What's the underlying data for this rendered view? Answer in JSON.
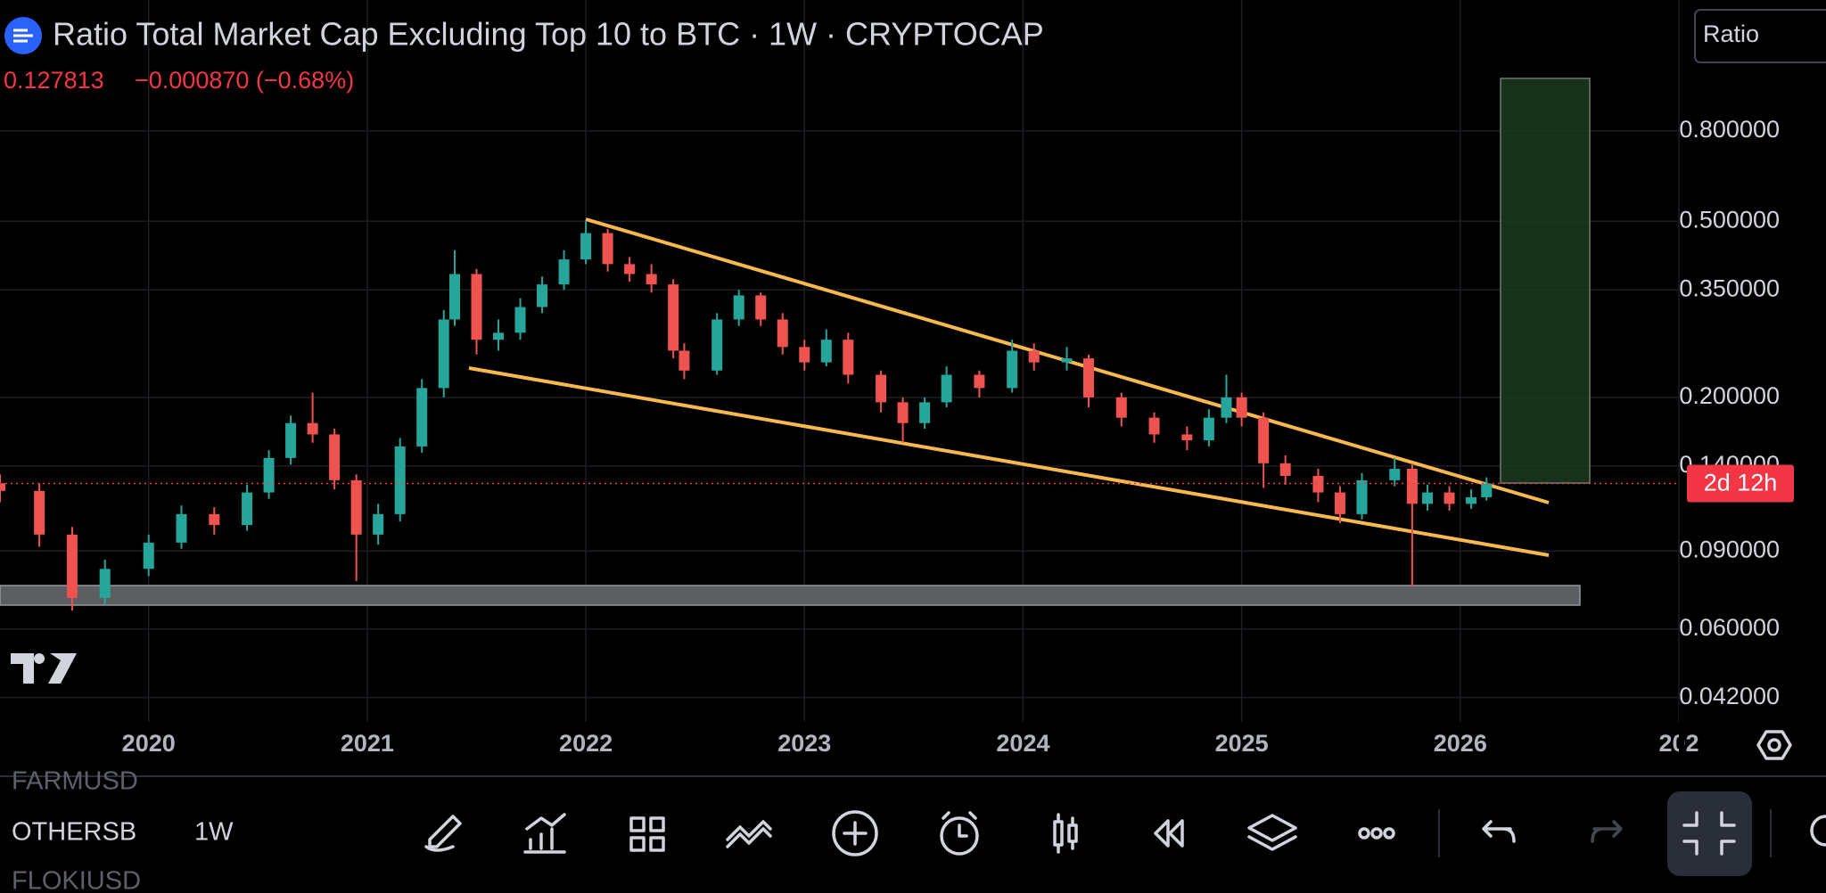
{
  "header": {
    "title": "Ratio Total Market Cap Excluding Top 10 to BTC · 1W · CRYPTOCAP",
    "change": "−0.000870 (−0.68%)"
  },
  "ratio_button": "Ratio",
  "countdown": "2d 12h",
  "toolbar": {
    "symbol_above": "FARMUSD",
    "symbol": "OTHERSB",
    "interval": "1W",
    "symbol_below": "FLOKIUSD"
  },
  "chart_data": {
    "type": "candlestick",
    "log_scale": true,
    "grid": true,
    "up_color": "#26a69a",
    "down_color": "#ef5350",
    "last_price": 0.127813,
    "x": [
      2019.32,
      2019.5,
      2019.65,
      2019.8,
      2020.0,
      2020.15,
      2020.3,
      2020.45,
      2020.55,
      2020.65,
      2020.75,
      2020.85,
      2020.95,
      2021.05,
      2021.15,
      2021.25,
      2021.35,
      2021.4,
      2021.5,
      2021.6,
      2021.7,
      2021.8,
      2021.9,
      2022.0,
      2022.1,
      2022.2,
      2022.3,
      2022.4,
      2022.45,
      2022.6,
      2022.7,
      2022.8,
      2022.9,
      2023.0,
      2023.1,
      2023.2,
      2023.35,
      2023.45,
      2023.55,
      2023.65,
      2023.8,
      2023.95,
      2024.05,
      2024.2,
      2024.3,
      2024.45,
      2024.6,
      2024.75,
      2024.85,
      2024.93,
      2025.0,
      2025.1,
      2025.2,
      2025.35,
      2025.45,
      2025.55,
      2025.7,
      2025.78,
      2025.85,
      2025.95,
      2026.05,
      2026.12
    ],
    "open": [
      0.128,
      0.123,
      0.098,
      0.0705,
      0.082,
      0.094,
      0.109,
      0.103,
      0.122,
      0.146,
      0.175,
      0.165,
      0.13,
      0.098,
      0.109,
      0.155,
      0.21,
      0.3,
      0.38,
      0.27,
      0.28,
      0.32,
      0.36,
      0.41,
      0.47,
      0.4,
      0.38,
      0.36,
      0.255,
      0.23,
      0.3,
      0.34,
      0.3,
      0.26,
      0.24,
      0.27,
      0.225,
      0.195,
      0.175,
      0.195,
      0.225,
      0.21,
      0.255,
      0.24,
      0.245,
      0.2,
      0.18,
      0.165,
      0.16,
      0.18,
      0.2,
      0.18,
      0.142,
      0.133,
      0.122,
      0.109,
      0.13,
      0.138,
      0.115,
      0.122,
      0.115,
      0.119
    ],
    "high": [
      0.134,
      0.128,
      0.102,
      0.086,
      0.098,
      0.114,
      0.113,
      0.127,
      0.152,
      0.182,
      0.205,
      0.17,
      0.134,
      0.115,
      0.162,
      0.22,
      0.315,
      0.43,
      0.39,
      0.3,
      0.335,
      0.375,
      0.43,
      0.5,
      0.48,
      0.415,
      0.4,
      0.37,
      0.265,
      0.31,
      0.35,
      0.345,
      0.31,
      0.27,
      0.285,
      0.28,
      0.23,
      0.2,
      0.2,
      0.235,
      0.23,
      0.27,
      0.265,
      0.26,
      0.25,
      0.205,
      0.185,
      0.172,
      0.188,
      0.225,
      0.205,
      0.185,
      0.148,
      0.138,
      0.126,
      0.135,
      0.146,
      0.142,
      0.127,
      0.126,
      0.124,
      0.132
    ],
    "low": [
      0.116,
      0.092,
      0.066,
      0.068,
      0.079,
      0.091,
      0.098,
      0.1,
      0.118,
      0.141,
      0.158,
      0.124,
      0.077,
      0.093,
      0.105,
      0.15,
      0.2,
      0.29,
      0.25,
      0.255,
      0.27,
      0.31,
      0.35,
      0.4,
      0.385,
      0.365,
      0.345,
      0.245,
      0.22,
      0.225,
      0.29,
      0.29,
      0.25,
      0.23,
      0.235,
      0.215,
      0.185,
      0.158,
      0.17,
      0.19,
      0.2,
      0.205,
      0.23,
      0.23,
      0.19,
      0.172,
      0.158,
      0.152,
      0.155,
      0.175,
      0.172,
      0.125,
      0.127,
      0.116,
      0.104,
      0.106,
      0.126,
      0.075,
      0.111,
      0.111,
      0.112,
      0.117
    ],
    "close": [
      0.123,
      0.098,
      0.0705,
      0.082,
      0.094,
      0.109,
      0.103,
      0.122,
      0.146,
      0.175,
      0.165,
      0.13,
      0.098,
      0.109,
      0.155,
      0.21,
      0.3,
      0.38,
      0.27,
      0.28,
      0.32,
      0.36,
      0.41,
      0.47,
      0.4,
      0.38,
      0.36,
      0.255,
      0.23,
      0.3,
      0.34,
      0.3,
      0.26,
      0.24,
      0.27,
      0.225,
      0.195,
      0.175,
      0.195,
      0.225,
      0.21,
      0.255,
      0.24,
      0.245,
      0.2,
      0.18,
      0.165,
      0.16,
      0.18,
      0.2,
      0.18,
      0.142,
      0.133,
      0.122,
      0.109,
      0.13,
      0.138,
      0.115,
      0.122,
      0.115,
      0.119,
      0.1278
    ],
    "xlim": [
      2019.32,
      2027.0
    ],
    "xticks": [
      2020,
      2021,
      2022,
      2023,
      2024,
      2025,
      2026,
      {
        "value": 2027,
        "label": "202"
      }
    ],
    "ylim": [
      0.037,
      1.58
    ],
    "yticks": [
      {
        "value": 0.042,
        "label": "0.042000"
      },
      {
        "value": 0.06,
        "label": "0.060000"
      },
      {
        "value": 0.09,
        "label": "0.090000"
      },
      {
        "value": 0.14,
        "label": "0.140000"
      },
      {
        "value": 0.2,
        "label": "0.200000"
      },
      {
        "value": 0.35,
        "label": "0.350000"
      },
      {
        "value": 0.5,
        "label": "0.500000"
      },
      {
        "value": 0.8,
        "label": "0.800000"
      }
    ]
  }
}
